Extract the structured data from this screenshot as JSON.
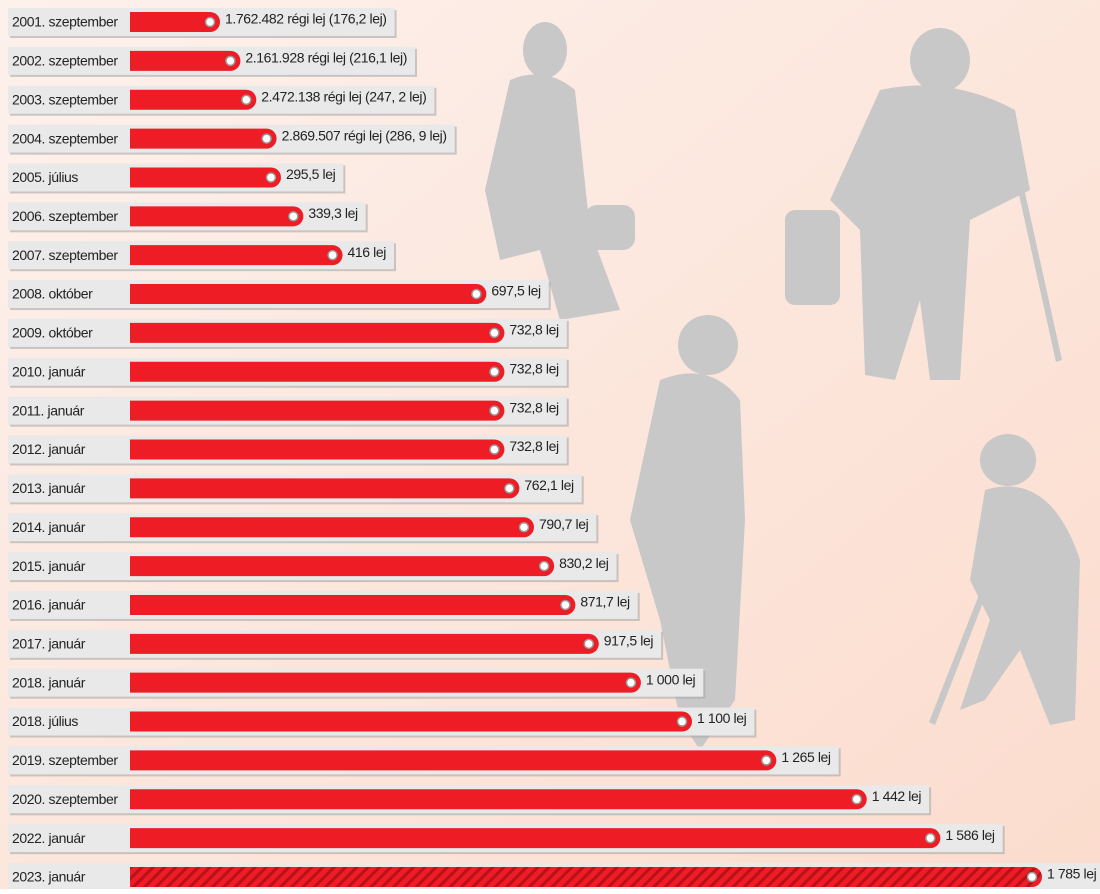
{
  "chart_data": {
    "type": "bar",
    "orientation": "horizontal",
    "color": "#ee1c25",
    "categories": [
      "2001. szeptember",
      "2002. szeptember",
      "2003. szeptember",
      "2004. szeptember",
      "2005. július",
      "2006. szeptember",
      "2007. szeptember",
      "2008. október",
      "2009. október",
      "2010. január",
      "2011. január",
      "2012. január",
      "2013. január",
      "2014. január",
      "2015. január",
      "2016. január",
      "2017. január",
      "2018. január",
      "2018. július",
      "2019. szeptember",
      "2020. szeptember",
      "2022. január",
      "2023. január"
    ],
    "values": [
      176.2,
      216.1,
      247.2,
      286.9,
      295.5,
      339.3,
      416,
      697.5,
      732.8,
      732.8,
      732.8,
      732.8,
      762.1,
      790.7,
      830.2,
      871.7,
      917.5,
      1000,
      1100,
      1265,
      1442,
      1586,
      1785
    ],
    "value_labels": [
      "1.762.482 régi lej (176,2 lej)",
      "2.161.928 régi lej (216,1 lej)",
      "2.472.138 régi lej (247, 2 lej)",
      "2.869.507 régi lej (286, 9 lej)",
      "295,5 lej",
      "339,3 lej",
      "416 lej",
      "697,5 lej",
      "732,8 lej",
      "732,8 lej",
      "732,8 lej",
      "732,8 lej",
      "762,1 lej",
      "790,7 lej",
      "830,2 lej",
      "871,7 lej",
      "917,5 lej",
      "1 000 lej",
      "1 100 lej",
      "1 265 lej",
      "1 442 lej",
      "1 586 lej",
      "1 785 lej"
    ],
    "hatched_index": 22
  }
}
